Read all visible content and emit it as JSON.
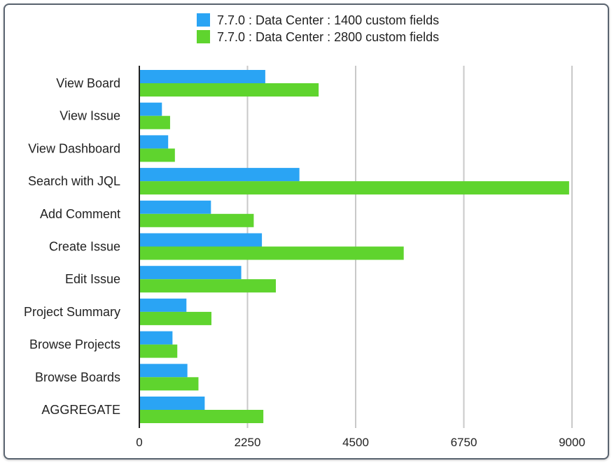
{
  "chart_data": {
    "type": "bar",
    "orientation": "horizontal",
    "categories": [
      "View Board",
      "View Issue",
      "View Dashboard",
      "Search with JQL",
      "Add Comment",
      "Create Issue",
      "Edit Issue",
      "Project Summary",
      "Browse Projects",
      "Browse Boards",
      "AGGREGATE"
    ],
    "series": [
      {
        "name": "7.7.0 : Data Center : 1400 custom fields",
        "color": "#2aa4f4",
        "values": [
          2620,
          470,
          600,
          3330,
          1490,
          2550,
          2120,
          980,
          690,
          1000,
          1360
        ]
      },
      {
        "name": "7.7.0 : Data Center : 2800 custom fields",
        "color": "#5fd42e",
        "values": [
          3730,
          640,
          740,
          8940,
          2380,
          5500,
          2840,
          1500,
          790,
          1230,
          2580
        ]
      }
    ],
    "xlim": [
      0,
      9000
    ],
    "xticks": [
      0,
      2250,
      4500,
      6750,
      9000
    ],
    "xtick_labels": [
      "0",
      "2250",
      "4500",
      "6750",
      "9000"
    ],
    "grid": true,
    "legend_position": "top"
  }
}
